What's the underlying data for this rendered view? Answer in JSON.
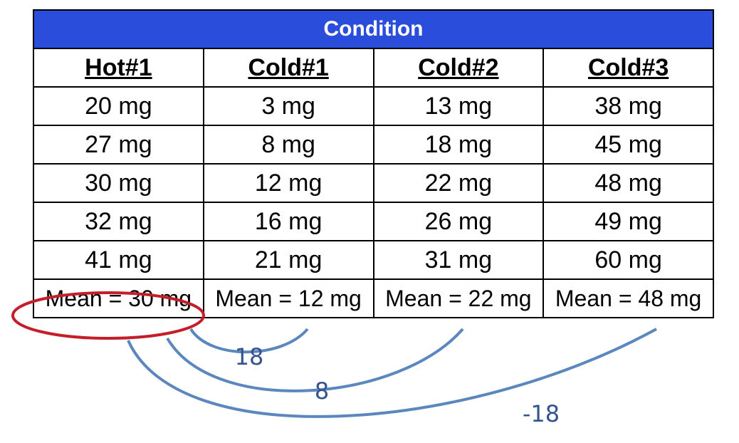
{
  "title": "Condition",
  "columns": [
    "Hot#1",
    "Cold#1",
    "Cold#2",
    "Cold#3"
  ],
  "rows": [
    [
      "20 mg",
      "3 mg",
      "13 mg",
      "38 mg"
    ],
    [
      "27 mg",
      "8 mg",
      "18 mg",
      "45 mg"
    ],
    [
      "30 mg",
      "12 mg",
      "22 mg",
      "48 mg"
    ],
    [
      "32 mg",
      "16 mg",
      "26 mg",
      "49 mg"
    ],
    [
      "41 mg",
      "21 mg",
      "31 mg",
      "60 mg"
    ]
  ],
  "means": [
    "Mean = 30 mg",
    "Mean = 12 mg",
    "Mean = 22 mg",
    "Mean = 48 mg"
  ],
  "differences": [
    {
      "from": "Hot#1",
      "to": "Cold#1",
      "label": "18"
    },
    {
      "from": "Hot#1",
      "to": "Cold#2",
      "label": "8"
    },
    {
      "from": "Hot#1",
      "to": "Cold#3",
      "label": "-18"
    }
  ],
  "colors": {
    "header_bg": "#2b4ddb",
    "header_text": "#ffffff",
    "arc": "#5b87bf",
    "arc_label": "#35538c",
    "highlight_ellipse": "#c41e2a"
  }
}
